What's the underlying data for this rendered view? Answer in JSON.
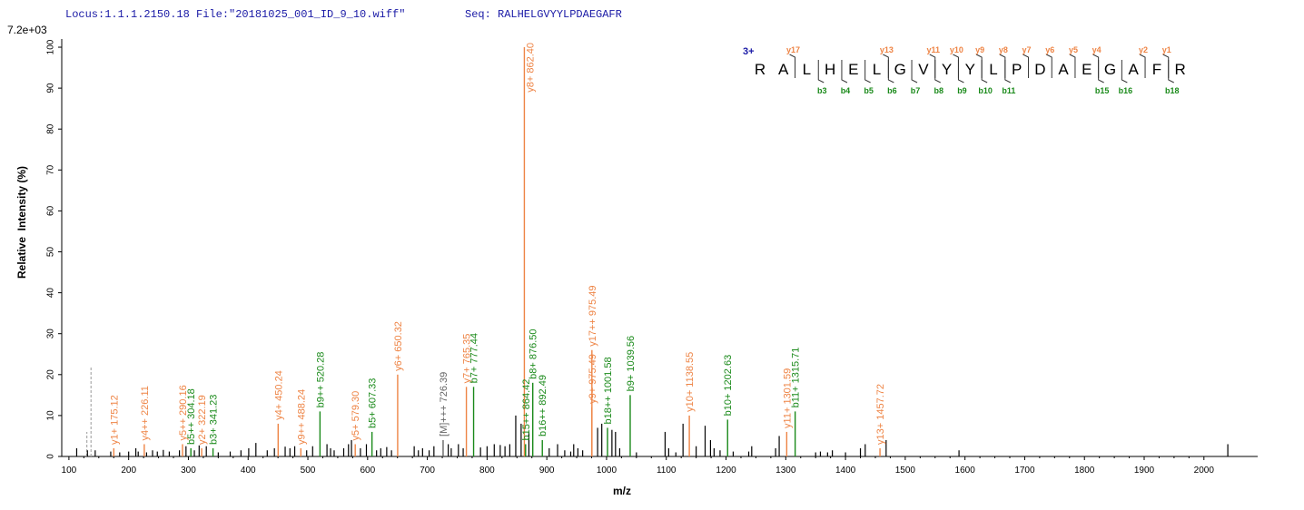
{
  "header": {
    "locus": "Locus:1.1.1.2150.18 File:\"20181025_001_ID_9_10.wiff\"",
    "seq": "Seq: RALHELGVYYLPDAEGAFR"
  },
  "chart_data": {
    "type": "stem",
    "scale_label": "7.2e+03",
    "x_label": "m/z",
    "y_label": "Relative  Intensity (%)",
    "xlim": [
      88,
      2090
    ],
    "ylim": [
      0,
      102
    ],
    "xticks": [
      100,
      200,
      300,
      400,
      500,
      600,
      700,
      800,
      900,
      1000,
      1100,
      1200,
      1300,
      1400,
      1500,
      1600,
      1700,
      1800,
      1900,
      2000
    ],
    "yticks": [
      0,
      10,
      20,
      30,
      40,
      50,
      60,
      70,
      80,
      90,
      100
    ],
    "peaks": {
      "color": "#000000",
      "x": [
        113,
        131,
        144,
        170,
        185,
        200,
        212,
        216,
        230,
        240,
        248,
        258,
        268,
        285,
        296,
        310,
        318,
        330,
        350,
        370,
        388,
        401,
        413,
        432,
        444,
        462,
        470,
        478,
        498,
        508,
        532,
        538,
        544,
        560,
        568,
        573,
        588,
        598,
        615,
        622,
        632,
        640,
        678,
        685,
        692,
        703,
        711,
        735,
        740,
        752,
        760,
        789,
        800,
        812,
        822,
        830,
        838,
        848,
        857,
        870,
        904,
        918,
        930,
        940,
        945,
        952,
        960,
        985,
        992,
        1009,
        1015,
        1022,
        1050,
        1098,
        1104,
        1116,
        1128,
        1150,
        1165,
        1174,
        1180,
        1190,
        1212,
        1238,
        1243,
        1283,
        1289,
        1350,
        1358,
        1370,
        1378,
        1400,
        1425,
        1433,
        1468,
        1590,
        2040
      ],
      "values": [
        2,
        1.5,
        1.5,
        1.2,
        1,
        1.2,
        2,
        1.2,
        1,
        1.5,
        1.2,
        1.6,
        1.2,
        1.5,
        2.5,
        1.5,
        2.7,
        2.5,
        1,
        1.2,
        1.5,
        2,
        3.3,
        1.5,
        2,
        2.4,
        2,
        2.5,
        1.5,
        2.5,
        3,
        2,
        1.5,
        2,
        3,
        4,
        2,
        3,
        1.5,
        2,
        2.3,
        1.5,
        2.5,
        1.5,
        2,
        1.5,
        2.5,
        3,
        2,
        3,
        2,
        2.2,
        2.5,
        3,
        2.8,
        2.5,
        3,
        10,
        8,
        6,
        2,
        3,
        1.5,
        1.2,
        3,
        2,
        1.5,
        7,
        8,
        6.5,
        6,
        2,
        1,
        6,
        2,
        1,
        8,
        2.5,
        7.5,
        4,
        2,
        1.5,
        1.2,
        1.2,
        2.5,
        2,
        5,
        1,
        1.2,
        1,
        1.5,
        1,
        2,
        3,
        4,
        1.5,
        3
      ]
    },
    "dashed_peaks": {
      "color": "#aaaaaa",
      "x": [
        130,
        137
      ],
      "values": [
        6,
        22
      ]
    },
    "annotations": [
      {
        "label": "y1+ 175.12",
        "x": 175.12,
        "value": 2,
        "color": "#ee8445"
      },
      {
        "label": "y4++ 226.11",
        "x": 226.11,
        "value": 3,
        "color": "#ee8445"
      },
      {
        "label": "y5++ 290.16",
        "x": 290.16,
        "value": 3,
        "color": "#ee8445"
      },
      {
        "label": "b5++ 304.18",
        "x": 304.18,
        "value": 2,
        "color": "#1a8a1a"
      },
      {
        "label": "y2+ 322.19",
        "x": 322.19,
        "value": 2,
        "color": "#ee8445"
      },
      {
        "label": "b3+ 341.23",
        "x": 341.23,
        "value": 2,
        "color": "#1a8a1a"
      },
      {
        "label": "y4+ 450.24",
        "x": 450.24,
        "value": 8,
        "color": "#ee8445"
      },
      {
        "label": "y9++ 488.24",
        "x": 488.24,
        "value": 2,
        "color": "#ee8445"
      },
      {
        "label": "b9++ 520.28",
        "x": 520.28,
        "value": 11,
        "color": "#1a8a1a"
      },
      {
        "label": "y5+ 579.30",
        "x": 579.3,
        "value": 3,
        "color": "#ee8445"
      },
      {
        "label": "b5+ 607.33",
        "x": 607.33,
        "value": 6,
        "color": "#1a8a1a"
      },
      {
        "label": "y6+ 650.32",
        "x": 650.32,
        "value": 20,
        "color": "#ee8445"
      },
      {
        "label": "[M]+++ 726.39",
        "x": 726.39,
        "value": 4,
        "color": "#666666"
      },
      {
        "label": "y7+ 765.35",
        "x": 765.35,
        "value": 17,
        "color": "#ee8445"
      },
      {
        "label": "b7+ 777.44",
        "x": 777.44,
        "value": 17,
        "color": "#1a8a1a"
      },
      {
        "label": "y8+ 862.40",
        "x": 862.4,
        "value": 100,
        "color": "#ee8445"
      },
      {
        "label": "b15++ 864.42",
        "x": 864.42,
        "value": 3,
        "color": "#1a8a1a"
      },
      {
        "label": "b8+ 876.50",
        "x": 876.5,
        "value": 18,
        "color": "#1a8a1a"
      },
      {
        "label": "b16++ 892.49",
        "x": 892.49,
        "value": 4,
        "color": "#1a8a1a"
      },
      {
        "label": "y9+ 975.49",
        "x": 975.49,
        "value": 12,
        "color": "#ee8445"
      },
      {
        "label": "y17++ 975.49",
        "x": 975.49,
        "value": 26,
        "color": "#ee8445"
      },
      {
        "label": "b18++ 1001.58",
        "x": 1001.58,
        "value": 7,
        "color": "#1a8a1a"
      },
      {
        "label": "b9+ 1039.56",
        "x": 1039.56,
        "value": 15,
        "color": "#1a8a1a"
      },
      {
        "label": "y10+ 1138.55",
        "x": 1138.55,
        "value": 10,
        "color": "#ee8445"
      },
      {
        "label": "b10+ 1202.63",
        "x": 1202.63,
        "value": 9,
        "color": "#1a8a1a"
      },
      {
        "label": "y11+ 1301.59",
        "x": 1301.59,
        "value": 6,
        "color": "#ee8445"
      },
      {
        "label": "b11+ 1315.71",
        "x": 1315.71,
        "value": 11,
        "color": "#1a8a1a"
      },
      {
        "label": "y13+ 1457.72",
        "x": 1457.72,
        "value": 2,
        "color": "#ee8445"
      }
    ]
  },
  "sequence": {
    "charge": "3+",
    "residues": [
      "R",
      "A",
      "L",
      "H",
      "E",
      "L",
      "G",
      "V",
      "Y",
      "Y",
      "L",
      "P",
      "D",
      "A",
      "E",
      "G",
      "A",
      "F",
      "R"
    ],
    "y_ions": [
      "y17",
      "y13",
      "y11",
      "y10",
      "y9",
      "y8",
      "y7",
      "y6",
      "y5",
      "y4",
      "y2",
      "y1"
    ],
    "b_ions": [
      "b3",
      "b4",
      "b5",
      "b6",
      "b7",
      "b8",
      "b9",
      "b10",
      "b11",
      "b15",
      "b16",
      "b18"
    ]
  }
}
